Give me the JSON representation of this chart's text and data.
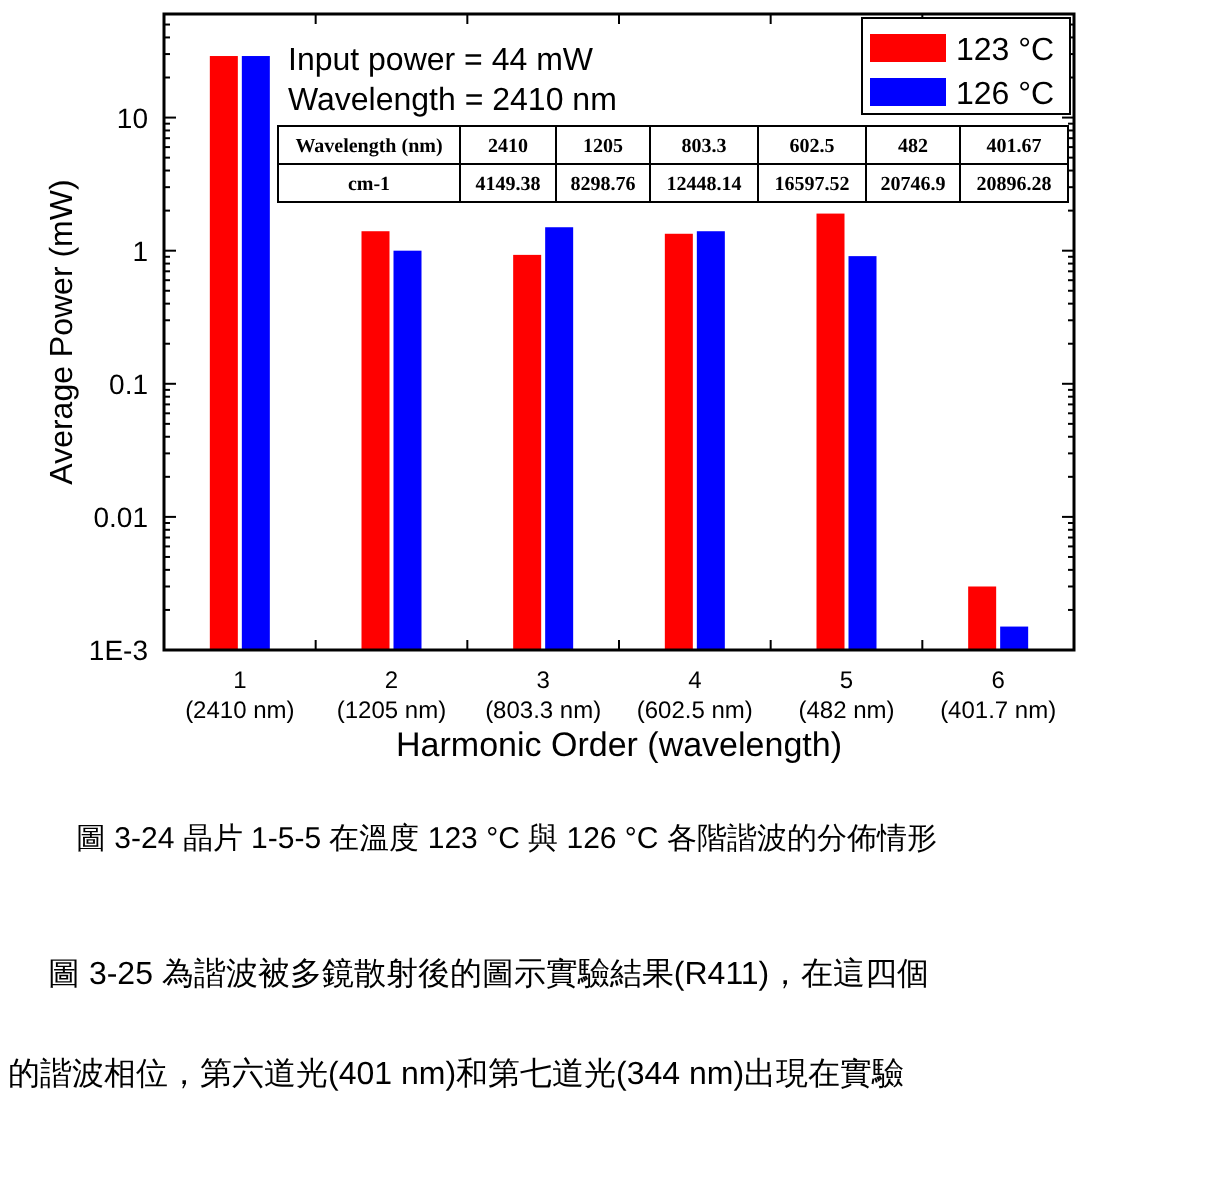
{
  "chart_data": {
    "type": "bar",
    "xlabel": "Harmonic Order (wavelength)",
    "ylabel": "Average Power (mW)",
    "categories": [
      "1\n(2410 nm)",
      "2\n(1205 nm)",
      "3\n(803.3 nm)",
      "4\n(602.5 nm)",
      "5\n(482 nm)",
      "6\n(401.7 nm)"
    ],
    "series": [
      {
        "name": "123 °C",
        "color": "#ff0000",
        "values": [
          29,
          1.4,
          0.93,
          1.34,
          1.9,
          0.003
        ]
      },
      {
        "name": "126 °C",
        "color": "#0000ff",
        "values": [
          29,
          1.0,
          1.5,
          1.4,
          0.91,
          0.0015
        ]
      }
    ],
    "log": "y",
    "ylim": [
      0.001,
      60
    ],
    "yticks": [
      {
        "value": 0.001,
        "label": "1E-3"
      },
      0.01,
      0.1,
      1,
      10
    ],
    "legend": "top right",
    "annotations": [
      "Input power = 44 mW",
      "Wavelength = 2410 nm",
      "Wavelength (nm)",
      "2410",
      "1205",
      "803.3",
      "602.5",
      "482",
      "401.67",
      "cm-1",
      "4149.38",
      "8298.76",
      "12448.14",
      "16597.52",
      "20746.9",
      "20896.28",
      "圖 3-24 晶片 1-5-5 在溫度 123 °C 與 126 °C 各階諧波的分佈情形",
      "圖 3-25 為諧波被多鏡散射後的圖示實驗結果(R411)，在這四個",
      "的諧波相位，第六道光(401 nm)和第七道光(344 nm)出現在實驗"
    ]
  }
}
